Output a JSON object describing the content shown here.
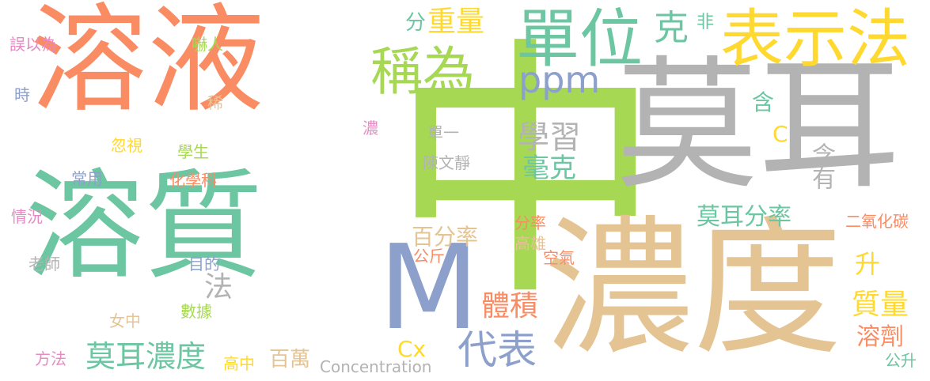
{
  "colors": {
    "orange": "#fa8c64",
    "teal": "#6cc6a2",
    "green": "#a6d854",
    "grey": "#b3b3b3",
    "tan": "#e5c494",
    "yellow": "#ffd92f",
    "blue": "#8da0cb",
    "pink": "#e78ac3"
  },
  "words": [
    {
      "text": "溶液",
      "color": "#fa8c64"
    },
    {
      "text": "溶質",
      "color": "#6cc6a2"
    },
    {
      "text": "中",
      "color": "#a6d854"
    },
    {
      "text": "莫耳",
      "color": "#b3b3b3"
    },
    {
      "text": "濃度",
      "color": "#e5c494"
    },
    {
      "text": "M",
      "color": "#8da0cb"
    },
    {
      "text": "單位",
      "color": "#6cc6a2"
    },
    {
      "text": "表示法",
      "color": "#ffd92f"
    },
    {
      "text": "稱為",
      "color": "#a6d854"
    },
    {
      "text": "重量",
      "color": "#ffd92f"
    },
    {
      "text": "ppm",
      "color": "#8da0cb"
    },
    {
      "text": "分",
      "color": "#6cc6a2"
    },
    {
      "text": "克",
      "color": "#6cc6a2"
    },
    {
      "text": "非",
      "color": "#6cc6a2"
    },
    {
      "text": "含",
      "color": "#6cc6a2"
    },
    {
      "text": "C",
      "color": "#ffd92f"
    },
    {
      "text": "學習",
      "color": "#b3b3b3"
    },
    {
      "text": "毫克",
      "color": "#6cc6a2"
    },
    {
      "text": "單一",
      "color": "#b3b3b3"
    },
    {
      "text": "陳文靜",
      "color": "#b3b3b3"
    },
    {
      "text": "含有",
      "color": "#b3b3b3"
    },
    {
      "text": "莫耳分率",
      "color": "#6cc6a2"
    },
    {
      "text": "二氧化碳",
      "color": "#fa8c64"
    },
    {
      "text": "百分率",
      "color": "#e5c494"
    },
    {
      "text": "升",
      "color": "#ffd92f"
    },
    {
      "text": "分率",
      "color": "#fa8c64"
    },
    {
      "text": "高雄",
      "color": "#e5c494"
    },
    {
      "text": "空氣",
      "color": "#fa8c64"
    },
    {
      "text": "公斤",
      "color": "#fa8c64"
    },
    {
      "text": "質量",
      "color": "#ffd92f"
    },
    {
      "text": "體積",
      "color": "#fa8c64"
    },
    {
      "text": "溶劑",
      "color": "#fa8c64"
    },
    {
      "text": "代表",
      "color": "#8da0cb"
    },
    {
      "text": "Cx",
      "color": "#ffd92f"
    },
    {
      "text": "公升",
      "color": "#6cc6a2"
    },
    {
      "text": "莫耳濃度",
      "color": "#6cc6a2"
    },
    {
      "text": "百萬",
      "color": "#e5c494"
    },
    {
      "text": "高中",
      "color": "#ffd92f"
    },
    {
      "text": "Concentration",
      "color": "#b3b3b3"
    },
    {
      "text": "法",
      "color": "#b3b3b3"
    },
    {
      "text": "目的",
      "color": "#8da0cb"
    },
    {
      "text": "數據",
      "color": "#a6d854"
    },
    {
      "text": "女中",
      "color": "#e5c494"
    },
    {
      "text": "化學科",
      "color": "#fa8c64"
    },
    {
      "text": "學生",
      "color": "#a6d854"
    },
    {
      "text": "忽視",
      "color": "#ffd92f"
    },
    {
      "text": "稀",
      "color": "#e5c494"
    },
    {
      "text": "濃",
      "color": "#e78ac3"
    },
    {
      "text": "嚇人",
      "color": "#a6d854"
    },
    {
      "text": "誤以為",
      "color": "#e78ac3"
    },
    {
      "text": "時",
      "color": "#8da0cb"
    },
    {
      "text": "常用",
      "color": "#8da0cb"
    },
    {
      "text": "情況",
      "color": "#e78ac3"
    },
    {
      "text": "老師",
      "color": "#b3b3b3"
    },
    {
      "text": "方法",
      "color": "#e78ac3"
    }
  ]
}
